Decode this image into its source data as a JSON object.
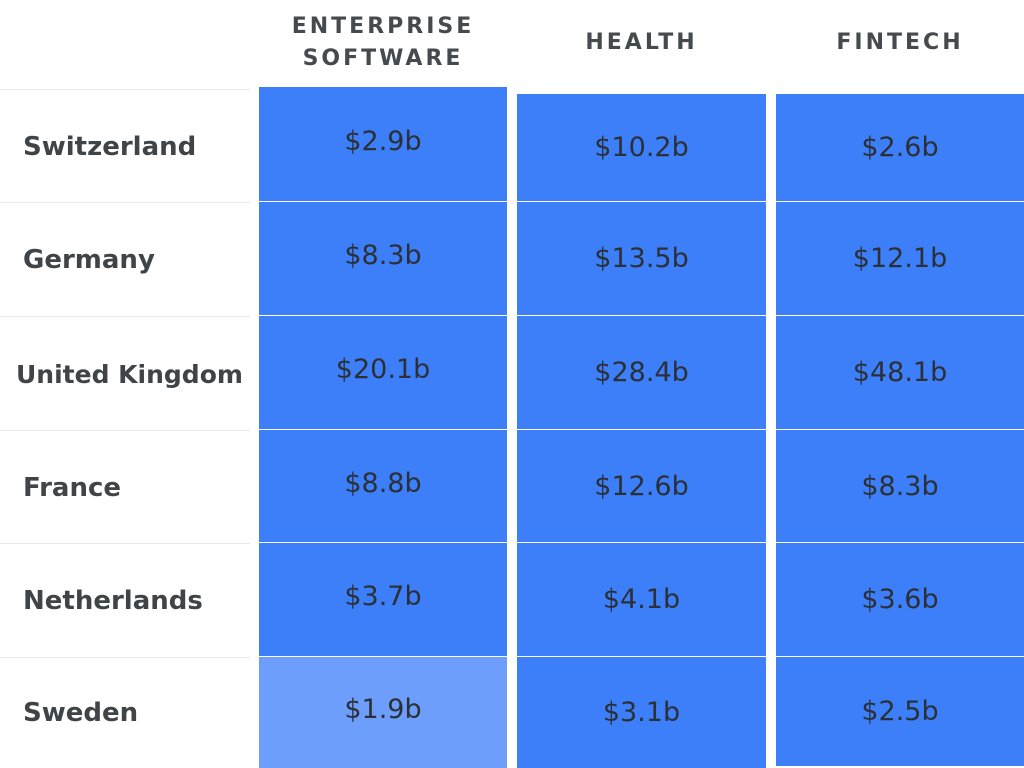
{
  "chart_data": {
    "type": "heatmap",
    "columns": [
      {
        "key": "enterprise_software",
        "label_lines": [
          "ENTERPRISE",
          "SOFTWARE"
        ]
      },
      {
        "key": "health",
        "label_lines": [
          "HEALTH"
        ]
      },
      {
        "key": "fintech",
        "label_lines": [
          "FINTECH"
        ]
      }
    ],
    "rows": [
      "Switzerland",
      "Germany",
      "United Kingdom",
      "France",
      "Netherlands",
      "Sweden"
    ],
    "values": [
      [
        2.9,
        10.2,
        2.6
      ],
      [
        8.3,
        13.5,
        12.1
      ],
      [
        20.1,
        28.4,
        48.1
      ],
      [
        8.8,
        12.6,
        8.3
      ],
      [
        3.7,
        4.1,
        3.6
      ],
      [
        1.9,
        3.1,
        2.5
      ]
    ],
    "value_labels": [
      [
        "$2.9b",
        "$10.2b",
        "$2.6b"
      ],
      [
        "$8.3b",
        "$13.5b",
        "$12.1b"
      ],
      [
        "$20.1b",
        "$28.4b",
        "$48.1b"
      ],
      [
        "$8.8b",
        "$12.6b",
        "$8.3b"
      ],
      [
        "$3.7b",
        "$4.1b",
        "$3.6b"
      ],
      [
        "$1.9b",
        "$3.1b",
        "$2.5b"
      ]
    ],
    "colors": {
      "cell_strong": "#3d7ff9",
      "cell_light": "#6e9efb",
      "text": "#2b3036",
      "header_text": "#444a4e",
      "row_label_text": "#3e4448",
      "row_separator": "#e6eaee"
    }
  }
}
